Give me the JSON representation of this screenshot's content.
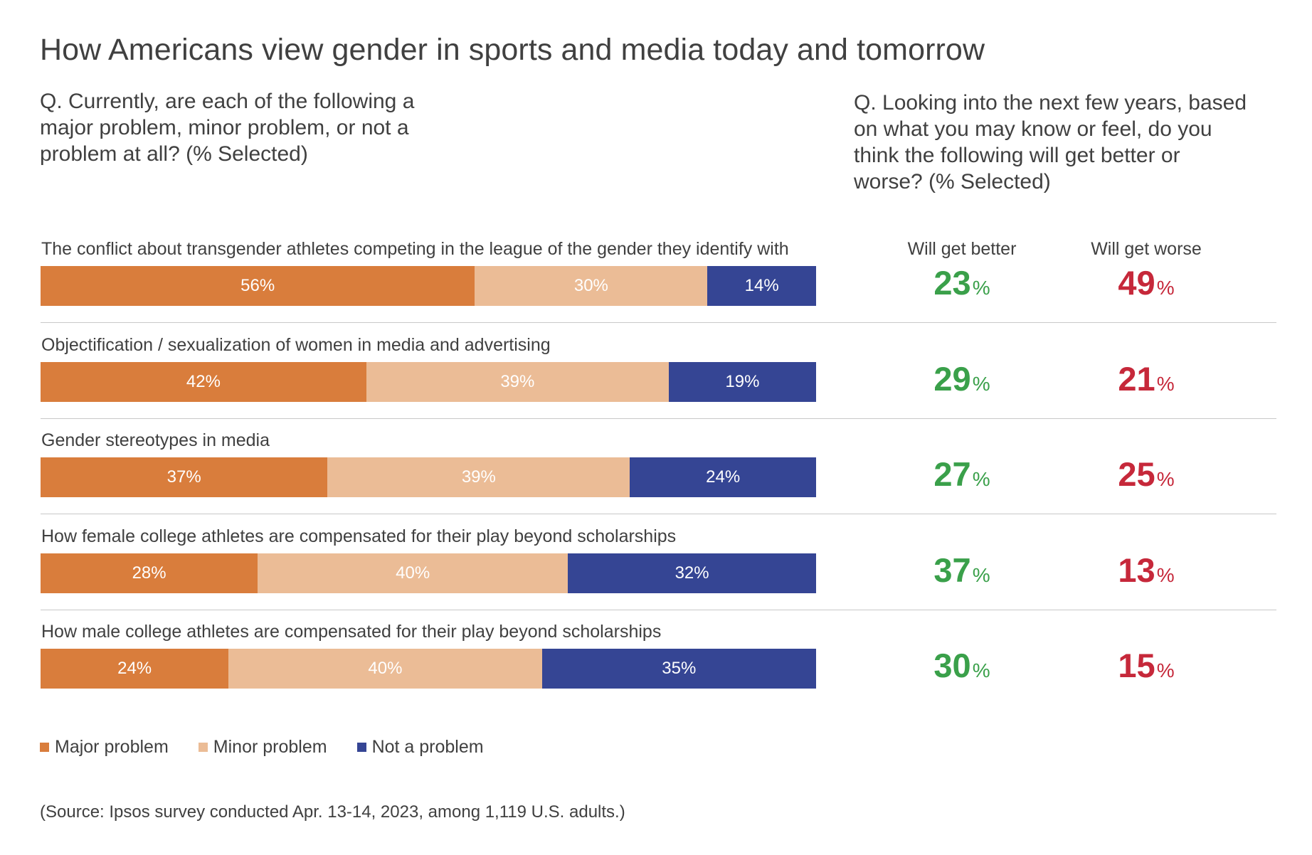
{
  "chart_data": {
    "type": "bar",
    "stacked": true,
    "orientation": "horizontal",
    "title": "How Americans view gender in sports and media today and tomorrow",
    "question_current": "Q. Currently, are each of the following a major problem, minor problem, or not a problem at all? (% Selected)",
    "question_future": "Q. Looking into the next few years, based on what you may know or feel, do you think the following will get better or worse? (% Selected)",
    "columns": {
      "better": "Will get better",
      "worse": "Will get worse"
    },
    "categories": [
      "The conflict about transgender athletes competing in the league of the gender they identify with",
      "Objectification / sexualization of women in media and advertising",
      "Gender stereotypes in media",
      "How female college athletes are compensated for their play beyond scholarships",
      "How male college athletes are compensated for their play beyond scholarships"
    ],
    "series": [
      {
        "name": "Major problem",
        "color": "#d97d3c",
        "values": [
          56,
          42,
          37,
          28,
          24
        ]
      },
      {
        "name": "Minor problem",
        "color": "#ebbc96",
        "values": [
          30,
          39,
          39,
          40,
          40
        ]
      },
      {
        "name": "Not a problem",
        "color": "#354594",
        "values": [
          14,
          19,
          24,
          32,
          35
        ]
      }
    ],
    "will_get_better": [
      23,
      29,
      27,
      37,
      30
    ],
    "will_get_worse": [
      49,
      21,
      25,
      13,
      15
    ],
    "better_color": "#3aa04a",
    "worse_color": "#c6283a",
    "percent_sign": "%",
    "legend": [
      "Major problem",
      "Minor problem",
      "Not a problem"
    ],
    "source": "(Source: Ipsos survey conducted Apr. 13-14, 2023, among 1,119 U.S. adults.)"
  }
}
